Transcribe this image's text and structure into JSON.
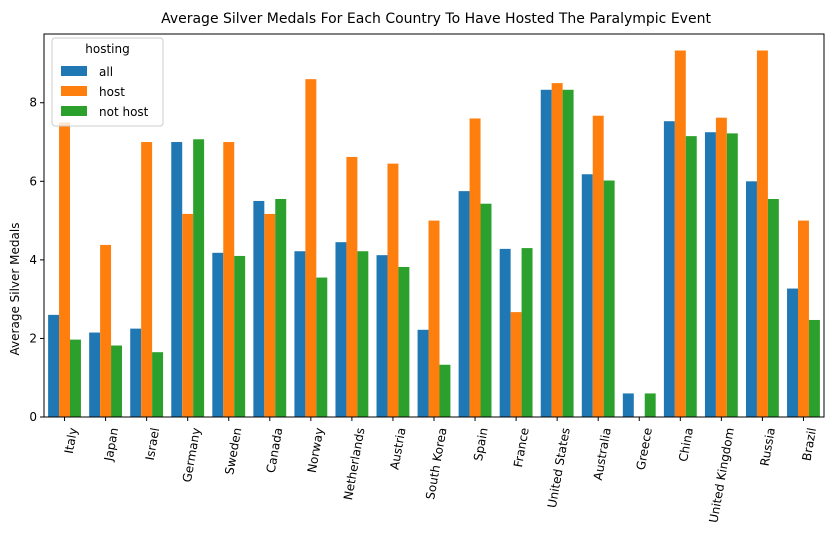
{
  "chart_data": {
    "type": "bar",
    "title": "Average Silver Medals For Each Country To Have Hosted The Paralympic Event",
    "xlabel": "",
    "ylabel": "Average Silver Medals",
    "ylim": [
      0,
      9.75
    ],
    "yticks": [
      0,
      2,
      4,
      6,
      8
    ],
    "grid": false,
    "legend": {
      "title": "hosting",
      "placement": "top-left"
    },
    "categories": [
      "Italy",
      "Japan",
      "Israel",
      "Germany",
      "Sweden",
      "Canada",
      "Norway",
      "Netherlands",
      "Austria",
      "South Korea",
      "Spain",
      "France",
      "United States",
      "Australia",
      "Greece",
      "China",
      "United Kingdom",
      "Russia",
      "Brazil"
    ],
    "series": [
      {
        "name": "all",
        "color": "#1f77b4",
        "values": [
          2.6,
          2.15,
          2.25,
          7.0,
          4.18,
          5.5,
          4.22,
          4.45,
          4.12,
          2.22,
          5.75,
          4.28,
          8.33,
          6.18,
          0.6,
          7.53,
          7.25,
          6.0,
          3.27
        ]
      },
      {
        "name": "host",
        "color": "#ff7f0e",
        "values": [
          7.5,
          4.38,
          7.0,
          5.17,
          7.0,
          5.17,
          8.6,
          6.62,
          6.45,
          5.0,
          7.6,
          2.67,
          8.5,
          7.67,
          0,
          9.33,
          7.62,
          9.33,
          5.0
        ]
      },
      {
        "name": "not host",
        "color": "#2ca02c",
        "values": [
          1.97,
          1.82,
          1.65,
          7.07,
          4.1,
          5.55,
          3.55,
          4.22,
          3.82,
          1.33,
          5.43,
          4.3,
          8.33,
          6.02,
          0.6,
          7.15,
          7.22,
          5.55,
          2.47
        ]
      }
    ]
  }
}
